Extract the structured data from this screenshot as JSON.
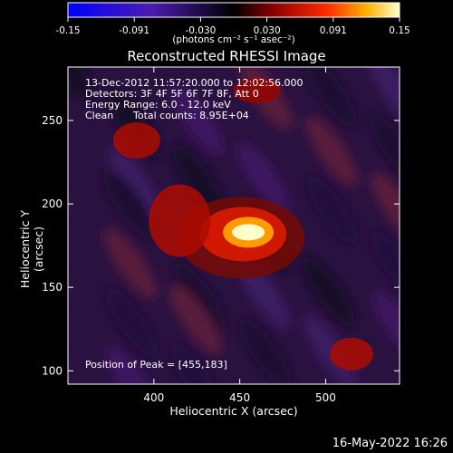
{
  "title": "Reconstructed RHESSI Image",
  "xlabel": "Heliocentric X (arcsec)",
  "ylabel": "Heliocentric Y (arcsec)",
  "colorbar": {
    "ticks": [
      "-0.15",
      "-0.091",
      "-0.030",
      "0.030",
      "0.091",
      "0.15"
    ],
    "units": "(photons cm⁻² s⁻¹ asec⁻²)",
    "range": [
      -0.15,
      0.15
    ]
  },
  "info": {
    "line1": "13-Dec-2012 11:57:20.000 to 12:02:56.000",
    "line2": "Detectors: 3F 4F 5F 6F 7F 8F, Att 0",
    "line3": "Energy Range: 6.0 - 12.0 keV",
    "clean": "Clean",
    "counts": "Total counts: 8.95E+04"
  },
  "peak_label": "Position of Peak = [455,183]",
  "date_stamp": "16-May-2022 16:26",
  "chart_data": {
    "type": "heatmap",
    "title": "Reconstructed RHESSI Image",
    "xlabel": "Heliocentric X (arcsec)",
    "ylabel": "Heliocentric Y (arcsec)",
    "xlim": [
      350,
      543
    ],
    "ylim": [
      92,
      282
    ],
    "xticks": [
      400,
      450,
      500
    ],
    "yticks": [
      100,
      150,
      200,
      250
    ],
    "value_range": [
      -0.15,
      0.15
    ],
    "peak": {
      "x": 455,
      "y": 183,
      "value": 0.15
    },
    "sources": [
      {
        "x": 455,
        "y": 183,
        "value": 0.15
      },
      {
        "x": 415,
        "y": 190,
        "value": 0.05
      },
      {
        "x": 390,
        "y": 238,
        "value": 0.05
      },
      {
        "x": 515,
        "y": 110,
        "value": 0.05
      },
      {
        "x": 460,
        "y": 268,
        "value": 0.04
      }
    ]
  }
}
